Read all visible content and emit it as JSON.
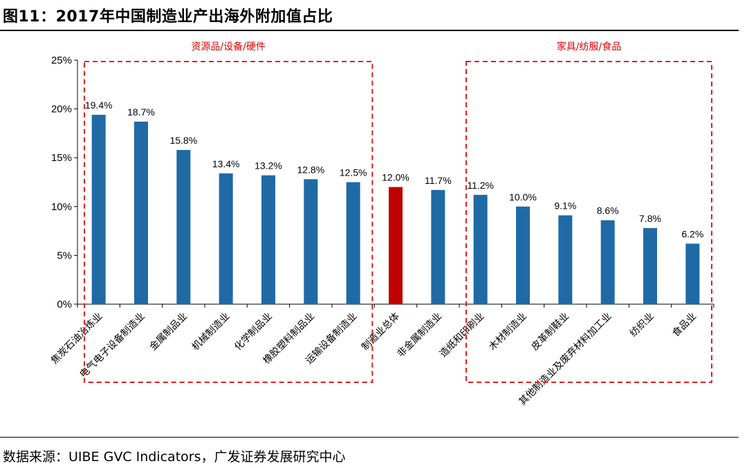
{
  "header": {
    "title": "图11：2017年中国制造业产出海外附加值占比"
  },
  "footer": {
    "source": "数据来源：UIBE GVC Indicators，广发证券发展研究中心"
  },
  "colors": {
    "bar": "#1f6aa5",
    "highlight": "#c00000",
    "box": "#e31a1c"
  },
  "chart_data": {
    "type": "bar",
    "title": "2017年中国制造业产出海外附加值占比",
    "categories": [
      "焦炭石油冶炼业",
      "电气电子设备制造业",
      "金属制品业",
      "机械制造业",
      "化学制品业",
      "橡胶塑料制品业",
      "运输设备制造业",
      "制造业总体",
      "非金属制造业",
      "造纸和印刷业",
      "木材制造业",
      "皮革制鞋业",
      "其他制造业及废弃材料加工业",
      "纺织业",
      "食品业"
    ],
    "values": [
      19.4,
      18.7,
      15.8,
      13.4,
      13.2,
      12.8,
      12.5,
      12.0,
      11.7,
      11.2,
      10.0,
      9.1,
      8.6,
      7.8,
      6.2
    ],
    "data_labels": [
      "19.4%",
      "18.7%",
      "15.8%",
      "13.4%",
      "13.2%",
      "12.8%",
      "12.5%",
      "12.0%",
      "11.7%",
      "11.2%",
      "10.0%",
      "9.1%",
      "8.6%",
      "7.8%",
      "6.2%"
    ],
    "highlight_index": 7,
    "ylim": [
      0,
      25
    ],
    "yticks": [
      0,
      5,
      10,
      15,
      20,
      25
    ],
    "ytick_labels": [
      "0%",
      "5%",
      "10%",
      "15%",
      "20%",
      "25%"
    ],
    "xlabel": "",
    "ylabel": "",
    "grid": false,
    "groups": [
      {
        "label": "资源品/设备/硬件",
        "first": 0,
        "last": 6
      },
      {
        "label": "家具/纺服/食品",
        "first": 9,
        "last": 14
      }
    ]
  }
}
